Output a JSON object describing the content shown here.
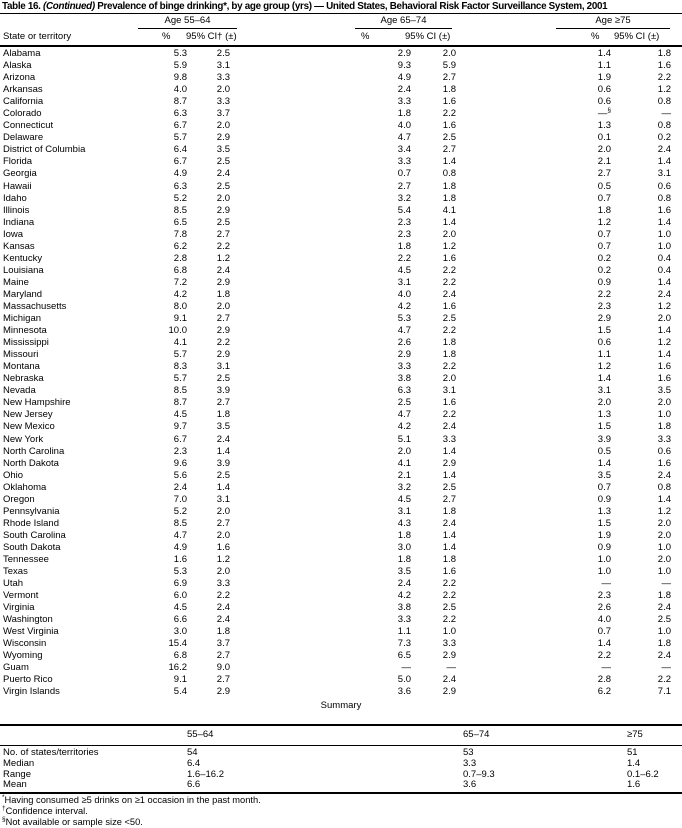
{
  "title": {
    "label": "Table 16.",
    "continued": "(Continued)",
    "rest": "Prevalence of binge drinking*, by age group (yrs) — United States, Behavioral Risk Factor Surveillance System, 2001"
  },
  "header": {
    "row_label": "State or territory",
    "groups": [
      {
        "label": "Age 55–64",
        "pct": "%",
        "ci": "95% CI† (±)"
      },
      {
        "label": "Age 65–74",
        "pct": "%",
        "ci": "95% CI (±)"
      },
      {
        "label": "Age ≥75",
        "pct": "%",
        "ci": "95% CI (±)"
      }
    ]
  },
  "table": {
    "rows": [
      {
        "state": "Alabama",
        "values": [
          "5.3",
          "2.5",
          "2.9",
          "2.0",
          "1.4",
          "1.8"
        ]
      },
      {
        "state": "Alaska",
        "values": [
          "5.9",
          "3.1",
          "9.3",
          "5.9",
          "1.1",
          "1.6"
        ]
      },
      {
        "state": "Arizona",
        "values": [
          "9.8",
          "3.3",
          "4.9",
          "2.7",
          "1.9",
          "2.2"
        ]
      },
      {
        "state": "Arkansas",
        "values": [
          "4.0",
          "2.0",
          "2.4",
          "1.8",
          "0.6",
          "1.2"
        ]
      },
      {
        "state": "California",
        "values": [
          "8.7",
          "3.3",
          "3.3",
          "1.6",
          "0.6",
          "0.8"
        ]
      },
      {
        "state": "Colorado",
        "values": [
          "6.3",
          "3.7",
          "1.8",
          "2.2",
          "—§",
          "—"
        ]
      },
      {
        "state": "Connecticut",
        "values": [
          "6.7",
          "2.0",
          "4.0",
          "1.6",
          "1.3",
          "0.8"
        ]
      },
      {
        "state": "Delaware",
        "values": [
          "5.7",
          "2.9",
          "4.7",
          "2.5",
          "0.1",
          "0.2"
        ]
      },
      {
        "state": "District of Columbia",
        "values": [
          "6.4",
          "3.5",
          "3.4",
          "2.7",
          "2.0",
          "2.4"
        ]
      },
      {
        "state": "Florida",
        "values": [
          "6.7",
          "2.5",
          "3.3",
          "1.4",
          "2.1",
          "1.4"
        ]
      },
      {
        "state": "Georgia",
        "values": [
          "4.9",
          "2.4",
          "0.7",
          "0.8",
          "2.7",
          "3.1"
        ]
      },
      {
        "state": "Hawaii",
        "values": [
          "6.3",
          "2.5",
          "2.7",
          "1.8",
          "0.5",
          "0.6"
        ]
      },
      {
        "state": "Idaho",
        "values": [
          "5.2",
          "2.0",
          "3.2",
          "1.8",
          "0.7",
          "0.8"
        ]
      },
      {
        "state": "Illinois",
        "values": [
          "8.5",
          "2.9",
          "5.4",
          "4.1",
          "1.8",
          "1.6"
        ]
      },
      {
        "state": "Indiana",
        "values": [
          "6.5",
          "2.5",
          "2.3",
          "1.4",
          "1.2",
          "1.4"
        ]
      },
      {
        "state": "Iowa",
        "values": [
          "7.8",
          "2.7",
          "2.3",
          "2.0",
          "0.7",
          "1.0"
        ]
      },
      {
        "state": "Kansas",
        "values": [
          "6.2",
          "2.2",
          "1.8",
          "1.2",
          "0.7",
          "1.0"
        ]
      },
      {
        "state": "Kentucky",
        "values": [
          "2.8",
          "1.2",
          "2.2",
          "1.6",
          "0.2",
          "0.4"
        ]
      },
      {
        "state": "Louisiana",
        "values": [
          "6.8",
          "2.4",
          "4.5",
          "2.2",
          "0.2",
          "0.4"
        ]
      },
      {
        "state": "Maine",
        "values": [
          "7.2",
          "2.9",
          "3.1",
          "2.2",
          "0.9",
          "1.4"
        ]
      },
      {
        "state": "Maryland",
        "values": [
          "4.2",
          "1.8",
          "4.0",
          "2.4",
          "2.2",
          "2.4"
        ]
      },
      {
        "state": "Massachusetts",
        "values": [
          "8.0",
          "2.0",
          "4.2",
          "1.6",
          "2.3",
          "1.2"
        ]
      },
      {
        "state": "Michigan",
        "values": [
          "9.1",
          "2.7",
          "5.3",
          "2.5",
          "2.9",
          "2.0"
        ]
      },
      {
        "state": "Minnesota",
        "values": [
          "10.0",
          "2.9",
          "4.7",
          "2.2",
          "1.5",
          "1.4"
        ]
      },
      {
        "state": "Mississippi",
        "values": [
          "4.1",
          "2.2",
          "2.6",
          "1.8",
          "0.6",
          "1.2"
        ]
      },
      {
        "state": "Missouri",
        "values": [
          "5.7",
          "2.9",
          "2.9",
          "1.8",
          "1.1",
          "1.4"
        ]
      },
      {
        "state": "Montana",
        "values": [
          "8.3",
          "3.1",
          "3.3",
          "2.2",
          "1.2",
          "1.6"
        ]
      },
      {
        "state": "Nebraska",
        "values": [
          "5.7",
          "2.5",
          "3.8",
          "2.0",
          "1.4",
          "1.6"
        ]
      },
      {
        "state": "Nevada",
        "values": [
          "8.5",
          "3.9",
          "6.3",
          "3.1",
          "3.1",
          "3.5"
        ]
      },
      {
        "state": "New Hampshire",
        "values": [
          "8.7",
          "2.7",
          "2.5",
          "1.6",
          "2.0",
          "2.0"
        ]
      },
      {
        "state": "New Jersey",
        "values": [
          "4.5",
          "1.8",
          "4.7",
          "2.2",
          "1.3",
          "1.0"
        ]
      },
      {
        "state": "New Mexico",
        "values": [
          "9.7",
          "3.5",
          "4.2",
          "2.4",
          "1.5",
          "1.8"
        ]
      },
      {
        "state": "New York",
        "values": [
          "6.7",
          "2.4",
          "5.1",
          "3.3",
          "3.9",
          "3.3"
        ]
      },
      {
        "state": "North Carolina",
        "values": [
          "2.3",
          "1.4",
          "2.0",
          "1.4",
          "0.5",
          "0.6"
        ]
      },
      {
        "state": "North Dakota",
        "values": [
          "9.6",
          "3.9",
          "4.1",
          "2.9",
          "1.4",
          "1.6"
        ]
      },
      {
        "state": "Ohio",
        "values": [
          "5.6",
          "2.5",
          "2.1",
          "1.4",
          "3.5",
          "2.4"
        ]
      },
      {
        "state": "Oklahoma",
        "values": [
          "2.4",
          "1.4",
          "3.2",
          "2.5",
          "0.7",
          "0.8"
        ]
      },
      {
        "state": "Oregon",
        "values": [
          "7.0",
          "3.1",
          "4.5",
          "2.7",
          "0.9",
          "1.4"
        ]
      },
      {
        "state": "Pennsylvania",
        "values": [
          "5.2",
          "2.0",
          "3.1",
          "1.8",
          "1.3",
          "1.2"
        ]
      },
      {
        "state": "Rhode Island",
        "values": [
          "8.5",
          "2.7",
          "4.3",
          "2.4",
          "1.5",
          "2.0"
        ]
      },
      {
        "state": "South Carolina",
        "values": [
          "4.7",
          "2.0",
          "1.8",
          "1.4",
          "1.9",
          "2.0"
        ]
      },
      {
        "state": "South Dakota",
        "values": [
          "4.9",
          "1.6",
          "3.0",
          "1.4",
          "0.9",
          "1.0"
        ]
      },
      {
        "state": "Tennessee",
        "values": [
          "1.6",
          "1.2",
          "1.8",
          "1.8",
          "1.0",
          "2.0"
        ]
      },
      {
        "state": "Texas",
        "values": [
          "5.3",
          "2.0",
          "3.5",
          "1.6",
          "1.0",
          "1.0"
        ]
      },
      {
        "state": "Utah",
        "values": [
          "6.9",
          "3.3",
          "2.4",
          "2.2",
          "—",
          "—"
        ]
      },
      {
        "state": "Vermont",
        "values": [
          "6.0",
          "2.2",
          "4.2",
          "2.2",
          "2.3",
          "1.8"
        ]
      },
      {
        "state": "Virginia",
        "values": [
          "4.5",
          "2.4",
          "3.8",
          "2.5",
          "2.6",
          "2.4"
        ]
      },
      {
        "state": "Washington",
        "values": [
          "6.6",
          "2.4",
          "3.3",
          "2.2",
          "4.0",
          "2.5"
        ]
      },
      {
        "state": "West Virginia",
        "values": [
          "3.0",
          "1.8",
          "1.1",
          "1.0",
          "0.7",
          "1.0"
        ]
      },
      {
        "state": "Wisconsin",
        "values": [
          "15.4",
          "3.7",
          "7.3",
          "3.3",
          "1.4",
          "1.8"
        ]
      },
      {
        "state": "Wyoming",
        "values": [
          "6.8",
          "2.7",
          "6.5",
          "2.9",
          "2.2",
          "2.4"
        ]
      },
      {
        "state": "Guam",
        "values": [
          "16.2",
          "9.0",
          "—",
          "—",
          "—",
          "—"
        ]
      },
      {
        "state": "Puerto Rico",
        "values": [
          "9.1",
          "2.7",
          "5.0",
          "2.4",
          "2.8",
          "2.2"
        ]
      },
      {
        "state": "Virgin Islands",
        "values": [
          "5.4",
          "2.9",
          "3.6",
          "2.9",
          "6.2",
          "7.1"
        ]
      }
    ]
  },
  "summary": {
    "title": "Summary",
    "columns": [
      "55–64",
      "65–74",
      "≥75"
    ],
    "rows": [
      {
        "label": "No. of states/territories",
        "values": [
          "54",
          "53",
          "51"
        ]
      },
      {
        "label": "Median",
        "values": [
          "6.4",
          "3.3",
          "1.4"
        ]
      },
      {
        "label": "Range",
        "values": [
          "1.6–16.2",
          "0.7–9.3",
          "0.1–6.2"
        ]
      },
      {
        "label": "Mean",
        "values": [
          "6.6",
          "3.6",
          "1.6"
        ]
      }
    ]
  },
  "footnotes": [
    {
      "marker": "*",
      "text": "Having consumed ≥5 drinks on ≥1 occasion in the past month."
    },
    {
      "marker": "†",
      "text": "Confidence interval."
    },
    {
      "marker": "§",
      "text": "Not available or sample size <50."
    }
  ]
}
